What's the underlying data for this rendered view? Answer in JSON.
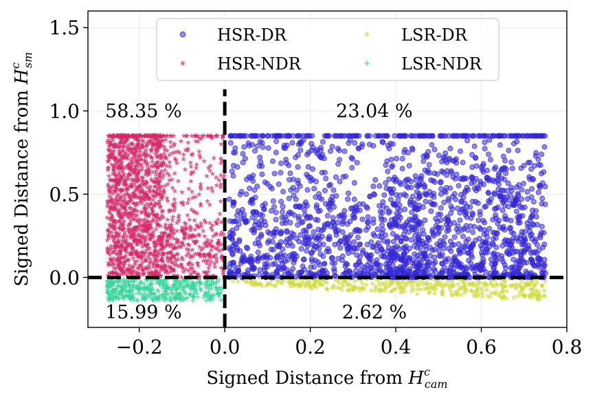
{
  "chart_data": {
    "type": "scatter",
    "title": "",
    "xlabel": "Signed Distance from",
    "xlabel_symbol": "H",
    "xlabel_sup": "c",
    "xlabel_sub": "cam",
    "ylabel": "Signed Distance from",
    "ylabel_symbol": "H",
    "ylabel_sup": "c",
    "ylabel_sub": "sm",
    "xlim": [
      -0.32,
      0.8
    ],
    "ylim": [
      -0.3,
      1.6
    ],
    "x_ticks": [
      -0.2,
      0.0,
      0.2,
      0.4,
      0.6,
      0.8
    ],
    "x_tick_labels": [
      "−0.2",
      "0.0",
      "0.2",
      "0.4",
      "0.6",
      "0.8"
    ],
    "y_ticks": [
      0.0,
      0.5,
      1.0,
      1.5
    ],
    "y_tick_labels": [
      "0.0",
      "0.5",
      "1.0",
      "1.5"
    ],
    "grid": true,
    "legend_position": "top-center",
    "reference_lines": [
      {
        "orientation": "horizontal",
        "value": 0.0,
        "style": "dashed",
        "color": "#000000"
      },
      {
        "orientation": "vertical",
        "value": 0.0,
        "style": "dashed",
        "color": "#000000"
      }
    ],
    "annotations": [
      {
        "text": "58.35 %",
        "x": -0.19,
        "y": 1.0
      },
      {
        "text": "23.04 %",
        "x": 0.35,
        "y": 1.0
      },
      {
        "text": "15.99 %",
        "x": -0.19,
        "y": -0.21
      },
      {
        "text": "2.62 %",
        "x": 0.35,
        "y": -0.21
      }
    ],
    "series": [
      {
        "name": "HSR-DR",
        "marker": "circle",
        "color": "#3326d6",
        "x_range": [
          0.0,
          0.75
        ],
        "y_range": [
          0.0,
          0.85
        ],
        "sample_points": [
          [
            0.05,
            0.85
          ],
          [
            0.12,
            0.75
          ],
          [
            0.2,
            0.6
          ],
          [
            0.28,
            0.4
          ],
          [
            0.35,
            0.25
          ],
          [
            0.42,
            0.5
          ],
          [
            0.5,
            0.3
          ],
          [
            0.58,
            0.2
          ],
          [
            0.62,
            0.45
          ],
          [
            0.7,
            0.15
          ],
          [
            0.72,
            0.85
          ]
        ]
      },
      {
        "name": "HSR-NDR",
        "marker": "star",
        "color": "#d62a68",
        "x_range": [
          -0.28,
          0.0
        ],
        "y_range": [
          0.0,
          0.85
        ],
        "sample_points": [
          [
            -0.27,
            0.85
          ],
          [
            -0.24,
            0.6
          ],
          [
            -0.21,
            0.4
          ],
          [
            -0.18,
            0.2
          ],
          [
            -0.15,
            0.5
          ],
          [
            -0.1,
            0.3
          ],
          [
            -0.05,
            0.1
          ],
          [
            -0.02,
            0.6
          ]
        ]
      },
      {
        "name": "LSR-DR",
        "marker": "pentagon",
        "color": "#cfdb3a",
        "x_range": [
          0.0,
          0.75
        ],
        "y_range": [
          -0.13,
          0.0
        ],
        "sample_points": [
          [
            0.05,
            -0.02
          ],
          [
            0.2,
            -0.05
          ],
          [
            0.35,
            -0.08
          ],
          [
            0.45,
            -0.1
          ],
          [
            0.55,
            -0.06
          ],
          [
            0.65,
            -0.09
          ],
          [
            0.72,
            -0.12
          ]
        ]
      },
      {
        "name": "LSR-NDR",
        "marker": "plus",
        "color": "#35d69a",
        "x_range": [
          -0.28,
          0.0
        ],
        "y_range": [
          -0.14,
          0.0
        ],
        "sample_points": [
          [
            -0.27,
            -0.13
          ],
          [
            -0.22,
            -0.08
          ],
          [
            -0.17,
            -0.12
          ],
          [
            -0.12,
            -0.05
          ],
          [
            -0.08,
            -0.1
          ],
          [
            -0.03,
            -0.03
          ]
        ]
      }
    ]
  }
}
